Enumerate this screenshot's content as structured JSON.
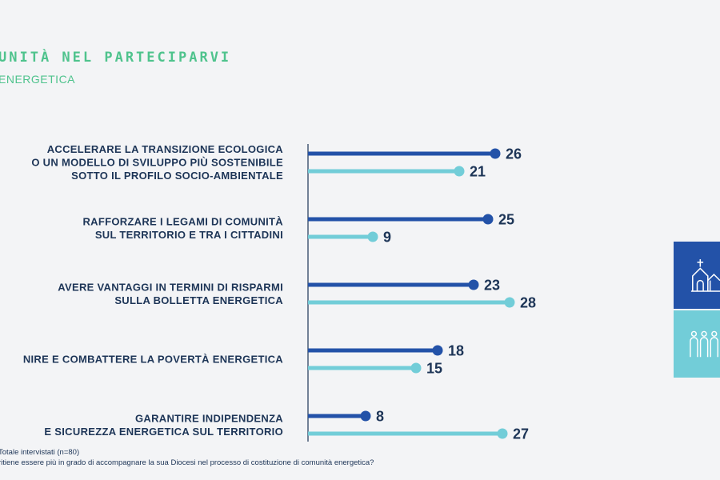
{
  "header": {
    "title": "UNITÀ NEL PARTECIPARVI",
    "subtitle": "ENERGETICA"
  },
  "colors": {
    "title": "#4fc38d",
    "series_dark": "#2352a8",
    "series_light": "#72cdd8",
    "text": "#1d3557"
  },
  "chart_data": {
    "type": "bar",
    "orientation": "horizontal",
    "categories": [
      [
        "ACCELERARE LA TRANSIZIONE ECOLOGICA",
        "O UN MODELLO DI SVILUPPO PIÙ SOSTENIBILE",
        "SOTTO IL PROFILO SOCIO-AMBIENTALE"
      ],
      [
        "RAFFORZARE I LEGAMI DI COMUNITÀ",
        "SUL TERRITORIO E TRA I CITTADINI"
      ],
      [
        "AVERE VANTAGGI IN TERMINI DI RISPARMI",
        "SULLA BOLLETTA ENERGETICA"
      ],
      [
        "NIRE E COMBATTERE LA POVERTÀ ENERGETICA"
      ],
      [
        "GARANTIRE INDIPENDENZA",
        "E SICUREZZA ENERGETICA SUL TERRITORIO"
      ]
    ],
    "series": [
      {
        "values": [
          26,
          25,
          23,
          18,
          8
        ],
        "color": "#2352a8"
      },
      {
        "values": [
          21,
          9,
          28,
          15,
          27
        ],
        "color": "#72cdd8"
      }
    ],
    "xlim": [
      0,
      30
    ],
    "grid": false
  },
  "footnotes": [
    "Totale intervistati (n=80)",
    "ritiene essere più in grado di accompagnare la sua Diocesi nel processo di costituzione di comunità energetica?"
  ],
  "side_icons": [
    "church-icon",
    "people-group-icon"
  ]
}
